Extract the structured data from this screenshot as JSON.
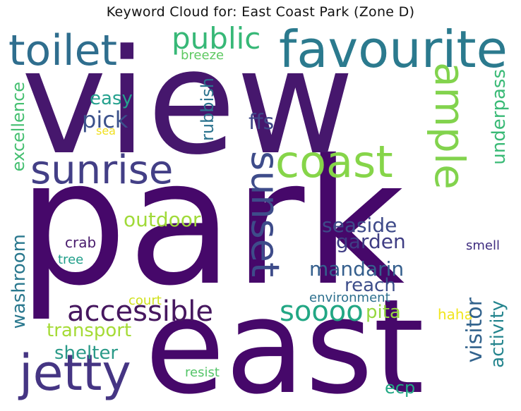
{
  "title": "Keyword Cloud for: East Coast Park (Zone D)",
  "words": [
    {
      "id": "park",
      "text": "park",
      "color": "#46086a"
    },
    {
      "id": "view",
      "text": "view",
      "color": "#46176d"
    },
    {
      "id": "east",
      "text": "east",
      "color": "#46086a"
    },
    {
      "id": "favourite",
      "text": "favourite",
      "color": "#2b7a8e"
    },
    {
      "id": "toilet",
      "text": "toilet",
      "color": "#2f6e8e"
    },
    {
      "id": "coast",
      "text": "coast",
      "color": "#86d549"
    },
    {
      "id": "sunrise",
      "text": "sunrise",
      "color": "#433f86"
    },
    {
      "id": "ample",
      "text": "ample",
      "color": "#82d34d"
    },
    {
      "id": "jetty",
      "text": "jetty",
      "color": "#453583"
    },
    {
      "id": "sunset",
      "text": "sunset",
      "color": "#3e4c8a"
    },
    {
      "id": "accessible",
      "text": "accessible",
      "color": "#46175f"
    },
    {
      "id": "public",
      "text": "public",
      "color": "#37b877"
    },
    {
      "id": "soooo",
      "text": "soooo",
      "color": "#22a784"
    },
    {
      "id": "pick",
      "text": "pick",
      "color": "#3b518b"
    },
    {
      "id": "easy",
      "text": "easy",
      "color": "#25a18e"
    },
    {
      "id": "ffs",
      "text": "ffs",
      "color": "#3f4788"
    },
    {
      "id": "rubbish",
      "text": "rubbish",
      "color": "#2c738e"
    },
    {
      "id": "breeze",
      "text": "breeze",
      "color": "#5ec962"
    },
    {
      "id": "sea",
      "text": "sea",
      "color": "#f0e020"
    },
    {
      "id": "excellence",
      "text": "excellence",
      "color": "#44bf70"
    },
    {
      "id": "washroom",
      "text": "washroom",
      "color": "#2a788e"
    },
    {
      "id": "outdoor",
      "text": "outdoor",
      "color": "#a0da39"
    },
    {
      "id": "seaside",
      "text": "seaside",
      "color": "#3e4a89"
    },
    {
      "id": "garden",
      "text": "garden",
      "color": "#3f3d84"
    },
    {
      "id": "mandarin",
      "text": "mandarin",
      "color": "#355f8d"
    },
    {
      "id": "reach",
      "text": "reach",
      "color": "#3d4e8a"
    },
    {
      "id": "environment",
      "text": "environment",
      "color": "#2d708e"
    },
    {
      "id": "crab",
      "text": "crab",
      "color": "#481a6c"
    },
    {
      "id": "tree",
      "text": "tree",
      "color": "#1f9e89"
    },
    {
      "id": "court",
      "text": "court",
      "color": "#d0e11c"
    },
    {
      "id": "transport",
      "text": "transport",
      "color": "#a5db36"
    },
    {
      "id": "shelter",
      "text": "shelter",
      "color": "#2a9a88"
    },
    {
      "id": "resist",
      "text": "resist",
      "color": "#54c568"
    },
    {
      "id": "pita",
      "text": "pita",
      "color": "#95d840"
    },
    {
      "id": "haha",
      "text": "haha",
      "color": "#f1e51d"
    },
    {
      "id": "ecp",
      "text": "ecp",
      "color": "#22a884"
    },
    {
      "id": "visitor",
      "text": "visitor",
      "color": "#33638d"
    },
    {
      "id": "activity",
      "text": "activity",
      "color": "#25858e"
    },
    {
      "id": "underpass",
      "text": "underpass",
      "color": "#3aba76"
    },
    {
      "id": "smell",
      "text": "smell",
      "color": "#3f2d80"
    }
  ]
}
